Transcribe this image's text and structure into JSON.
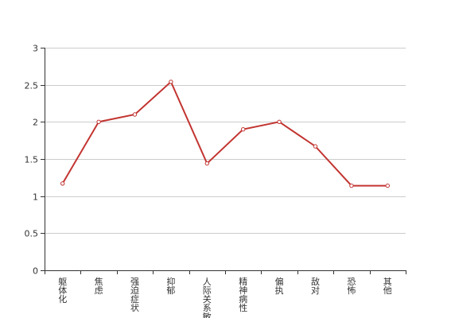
{
  "chart_data": {
    "type": "line",
    "categories": [
      "躯体化",
      "焦虑",
      "强迫症状",
      "抑郁",
      "人际关系敏感",
      "精神病性",
      "偏执",
      "敌对",
      "恐怖",
      "其他"
    ],
    "series": [
      {
        "values": [
          1.17,
          2.0,
          2.1,
          2.54,
          1.44,
          1.9,
          2.0,
          1.67,
          1.14,
          1.14
        ]
      }
    ],
    "ylim": [
      0,
      3
    ],
    "yticks": [
      0,
      0.5,
      1,
      1.5,
      2,
      2.5,
      3
    ],
    "ytick_labels": [
      "0",
      "0.5",
      "1",
      "1.5",
      "2",
      "2.5",
      "3"
    ],
    "grid": true,
    "title": "",
    "xlabel": "",
    "ylabel": "",
    "colors": {
      "line": "#c23531",
      "grid": "#cccccc",
      "axis": "#333333"
    }
  }
}
